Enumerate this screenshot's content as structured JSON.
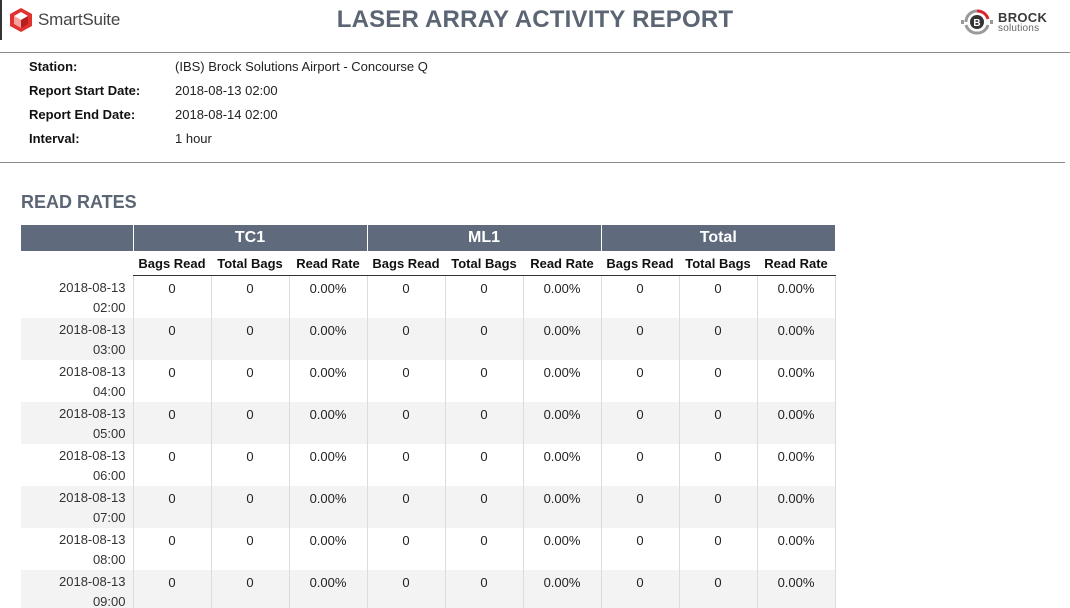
{
  "header": {
    "app_name": "SmartSuite",
    "report_title": "LASER ARRAY ACTIVITY REPORT",
    "company_name": "BROCK",
    "company_sub": "solutions",
    "company_badge": "B"
  },
  "info": [
    {
      "label": "Station:",
      "value": "(IBS) Brock Solutions Airport - Concourse Q"
    },
    {
      "label": "Report Start Date:",
      "value": "2018-08-13 02:00"
    },
    {
      "label": "Report End Date:",
      "value": "2018-08-14 02:00"
    },
    {
      "label": "Interval:",
      "value": "1 hour"
    }
  ],
  "section_title": "READ RATES",
  "table": {
    "groups": [
      "TC1",
      "ML1",
      "Total"
    ],
    "columns": [
      "Bags Read",
      "Total Bags",
      "Read Rate"
    ],
    "rows": [
      {
        "date": "2018-08-13",
        "time": "02:00",
        "cells": [
          "0",
          "0",
          "0.00%",
          "0",
          "0",
          "0.00%",
          "0",
          "0",
          "0.00%"
        ]
      },
      {
        "date": "2018-08-13",
        "time": "03:00",
        "cells": [
          "0",
          "0",
          "0.00%",
          "0",
          "0",
          "0.00%",
          "0",
          "0",
          "0.00%"
        ]
      },
      {
        "date": "2018-08-13",
        "time": "04:00",
        "cells": [
          "0",
          "0",
          "0.00%",
          "0",
          "0",
          "0.00%",
          "0",
          "0",
          "0.00%"
        ]
      },
      {
        "date": "2018-08-13",
        "time": "05:00",
        "cells": [
          "0",
          "0",
          "0.00%",
          "0",
          "0",
          "0.00%",
          "0",
          "0",
          "0.00%"
        ]
      },
      {
        "date": "2018-08-13",
        "time": "06:00",
        "cells": [
          "0",
          "0",
          "0.00%",
          "0",
          "0",
          "0.00%",
          "0",
          "0",
          "0.00%"
        ]
      },
      {
        "date": "2018-08-13",
        "time": "07:00",
        "cells": [
          "0",
          "0",
          "0.00%",
          "0",
          "0",
          "0.00%",
          "0",
          "0",
          "0.00%"
        ]
      },
      {
        "date": "2018-08-13",
        "time": "08:00",
        "cells": [
          "0",
          "0",
          "0.00%",
          "0",
          "0",
          "0.00%",
          "0",
          "0",
          "0.00%"
        ]
      },
      {
        "date": "2018-08-13",
        "time": "09:00",
        "cells": [
          "0",
          "0",
          "0.00%",
          "0",
          "0",
          "0.00%",
          "0",
          "0",
          "0.00%"
        ]
      }
    ]
  },
  "colors": {
    "title": "#5b6573",
    "table_header_bg": "#5f6b7d",
    "alt_row_bg": "#f3f3f3",
    "smartsuite_red": "#e0322f",
    "brock_red": "#d8232a"
  }
}
